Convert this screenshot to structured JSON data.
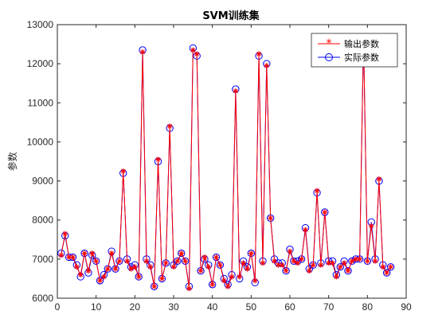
{
  "chart_data": {
    "type": "line",
    "title": "SVM训练集",
    "xlabel": "",
    "ylabel": "参数",
    "xlim": [
      0,
      90
    ],
    "ylim": [
      6000,
      13000
    ],
    "x_ticks": [
      0,
      10,
      20,
      30,
      40,
      50,
      60,
      70,
      80,
      90
    ],
    "y_ticks": [
      6000,
      7000,
      8000,
      9000,
      10000,
      11000,
      12000,
      13000
    ],
    "grid": false,
    "legend_position": "top-right",
    "series": [
      {
        "name": "输出参数",
        "color": "#ff0000",
        "marker": "asterisk",
        "values": [
          7100,
          7650,
          7050,
          7050,
          6800,
          6600,
          7150,
          6700,
          7150,
          6950,
          6450,
          6550,
          6750,
          7150,
          6750,
          6950,
          9250,
          6950,
          6750,
          6800,
          6550,
          12300,
          6950,
          6800,
          6300,
          9550,
          6500,
          6900,
          10400,
          6800,
          6950,
          7150,
          6950,
          6250,
          12350,
          12250,
          6700,
          7050,
          6800,
          6350,
          7050,
          6850,
          6450,
          6300,
          6550,
          11300,
          6550,
          6900,
          6750,
          7150,
          6450,
          12250,
          6900,
          11950,
          8050,
          6950,
          6850,
          6850,
          6700,
          7200,
          6950,
          6900,
          7000,
          7750,
          6700,
          6850,
          8750,
          6850,
          8200,
          6900,
          6900,
          6550,
          6800,
          6900,
          6700,
          6950,
          7000,
          7000,
          12700,
          6950,
          7850,
          6950,
          9050,
          6800,
          6650,
          6800
        ]
      },
      {
        "name": "实际参数",
        "color": "#0000ff",
        "marker": "circle",
        "values": [
          7150,
          7600,
          7050,
          7050,
          6850,
          6550,
          7150,
          6650,
          7100,
          6950,
          6450,
          6600,
          6750,
          7200,
          6750,
          6950,
          9200,
          7000,
          6800,
          6850,
          6550,
          12350,
          7000,
          6850,
          6300,
          9500,
          6500,
          6900,
          10350,
          6850,
          6950,
          7150,
          6950,
          6300,
          12400,
          12200,
          6700,
          7000,
          6850,
          6350,
          7050,
          6850,
          6500,
          6350,
          6600,
          11350,
          6500,
          6950,
          6800,
          7150,
          6400,
          12200,
          6950,
          12000,
          8050,
          7000,
          6900,
          6900,
          6700,
          7250,
          6950,
          6950,
          7000,
          7800,
          6750,
          6850,
          8700,
          6900,
          8200,
          6950,
          6950,
          6600,
          6800,
          6950,
          6700,
          6950,
          7000,
          7000,
          12650,
          6950,
          7950,
          7000,
          9000,
          6850,
          6650,
          6800
        ]
      }
    ]
  }
}
